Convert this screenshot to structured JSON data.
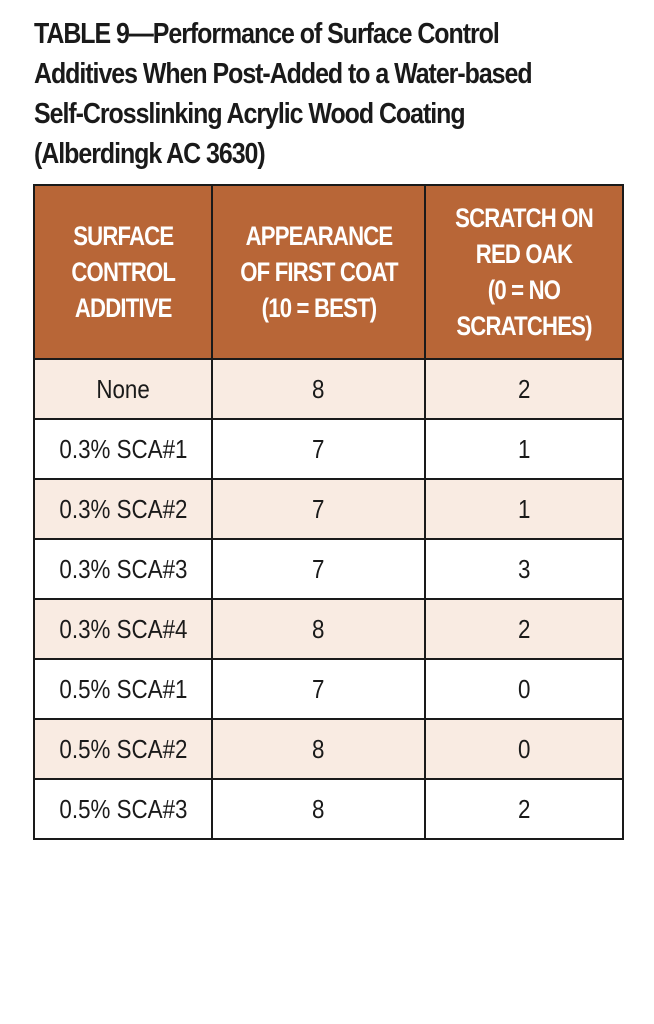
{
  "title_lines": [
    "TABLE 9—Performance of Surface Control",
    "Additives When Post-Added to a Water-based",
    "Self-Crosslinking Acrylic Wood Coating",
    "(Alberdingk AC 3630)"
  ],
  "header": [
    [
      "SURFACE",
      "CONTROL",
      "ADDITIVE"
    ],
    [
      "APPEARANCE",
      "OF FIRST COAT",
      "(10 = BEST)"
    ],
    [
      "SCRATCH ON",
      "RED OAK",
      "(0 = NO",
      "SCRATCHES)"
    ]
  ],
  "rows": [
    [
      "None",
      "8",
      "2"
    ],
    [
      "0.3% SCA#1",
      "7",
      "1"
    ],
    [
      "0.3% SCA#2",
      "7",
      "1"
    ],
    [
      "0.3% SCA#3",
      "7",
      "3"
    ],
    [
      "0.3% SCA#4",
      "8",
      "2"
    ],
    [
      "0.5% SCA#1",
      "7",
      "0"
    ],
    [
      "0.5% SCA#2",
      "8",
      "0"
    ],
    [
      "0.5% SCA#3",
      "8",
      "2"
    ]
  ],
  "colors": {
    "header_bg": "#b86637",
    "header_text": "#ffffff",
    "stripe_bg": "#f9ebe2",
    "row_bg": "#ffffff",
    "border": "#1a1a1a"
  }
}
